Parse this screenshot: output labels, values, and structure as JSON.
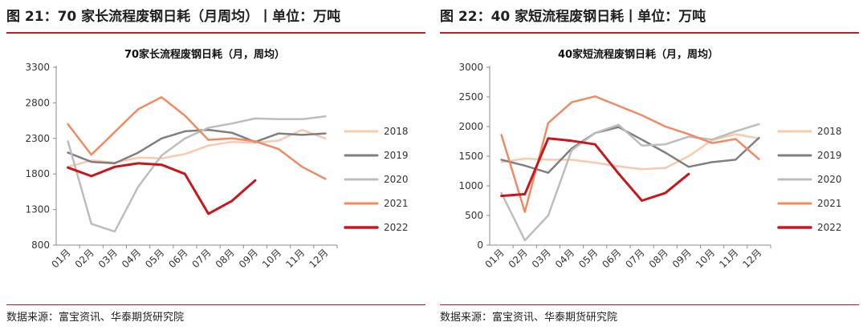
{
  "left": {
    "figure_title": "图 21：70 家长流程废钢日耗（月周均）丨单位：万吨",
    "source": "数据来源：富宝资讯、华泰期货研究院"
  },
  "right": {
    "figure_title": "图 22：40 家短流程废钢日耗丨单位：万吨",
    "source": "数据来源：富宝资讯、华泰期货研究院"
  },
  "chart_data": [
    {
      "type": "line",
      "title": "70家长流程废钢日耗（月，周均）",
      "xlabel": "",
      "ylabel": "",
      "categories": [
        "01月",
        "02月",
        "03月",
        "04月",
        "05月",
        "06月",
        "07月",
        "08月",
        "09月",
        "10月",
        "11月",
        "12月"
      ],
      "ylim": [
        800,
        3300
      ],
      "yticks": [
        800,
        1300,
        1800,
        2300,
        2800,
        3300
      ],
      "grid": false,
      "legend": "right",
      "series": [
        {
          "name": "2018",
          "color": "#f9c9ad",
          "width": 2.5,
          "values": [
            1900,
            1990,
            1960,
            2030,
            2020,
            2080,
            2200,
            2250,
            2240,
            2270,
            2420,
            2300
          ]
        },
        {
          "name": "2019",
          "color": "#7f7f7f",
          "width": 2.5,
          "values": [
            2100,
            1970,
            1950,
            2100,
            2300,
            2400,
            2420,
            2380,
            2250,
            2370,
            2350,
            2370
          ]
        },
        {
          "name": "2020",
          "color": "#bdbdbd",
          "width": 2.5,
          "values": [
            2260,
            1100,
            990,
            1620,
            2060,
            2300,
            2450,
            2510,
            2580,
            2570,
            2570,
            2610
          ]
        },
        {
          "name": "2021",
          "color": "#f08a62",
          "width": 2.5,
          "values": [
            2500,
            2070,
            2390,
            2710,
            2880,
            2620,
            2280,
            2300,
            2260,
            2150,
            1900,
            1730
          ]
        },
        {
          "name": "2022",
          "color": "#c8161d",
          "width": 3,
          "values": [
            1890,
            1770,
            1900,
            1950,
            1930,
            1800,
            1240,
            1420,
            1710,
            null,
            null,
            null
          ]
        }
      ]
    },
    {
      "type": "line",
      "title": "40家短流程废钢日耗（月，周均）",
      "xlabel": "",
      "ylabel": "",
      "categories": [
        "01月",
        "02月",
        "03月",
        "04月",
        "05月",
        "06月",
        "07月",
        "08月",
        "09月",
        "10月",
        "11月",
        "12月"
      ],
      "ylim": [
        0,
        3000
      ],
      "yticks": [
        0,
        500,
        1000,
        1500,
        2000,
        2500,
        3000
      ],
      "grid": false,
      "legend": "right",
      "series": [
        {
          "name": "2018",
          "color": "#f9c9ad",
          "width": 2.5,
          "values": [
            1400,
            1460,
            1440,
            1440,
            1390,
            1330,
            1280,
            1300,
            1500,
            1770,
            1870,
            1800
          ]
        },
        {
          "name": "2019",
          "color": "#7f7f7f",
          "width": 2.5,
          "values": [
            1440,
            1340,
            1220,
            1630,
            1890,
            1990,
            1780,
            1560,
            1320,
            1400,
            1440,
            1810
          ]
        },
        {
          "name": "2020",
          "color": "#bdbdbd",
          "width": 2.5,
          "values": [
            880,
            80,
            500,
            1600,
            1890,
            2030,
            1680,
            1700,
            1830,
            1780,
            1920,
            2040
          ]
        },
        {
          "name": "2021",
          "color": "#f08a62",
          "width": 2.5,
          "values": [
            1860,
            560,
            2060,
            2410,
            2510,
            2350,
            2190,
            2000,
            1870,
            1720,
            1790,
            1450
          ]
        },
        {
          "name": "2022",
          "color": "#c8161d",
          "width": 3,
          "values": [
            830,
            860,
            1800,
            1760,
            1700,
            1210,
            750,
            880,
            1200,
            null,
            null,
            null
          ]
        }
      ]
    }
  ]
}
